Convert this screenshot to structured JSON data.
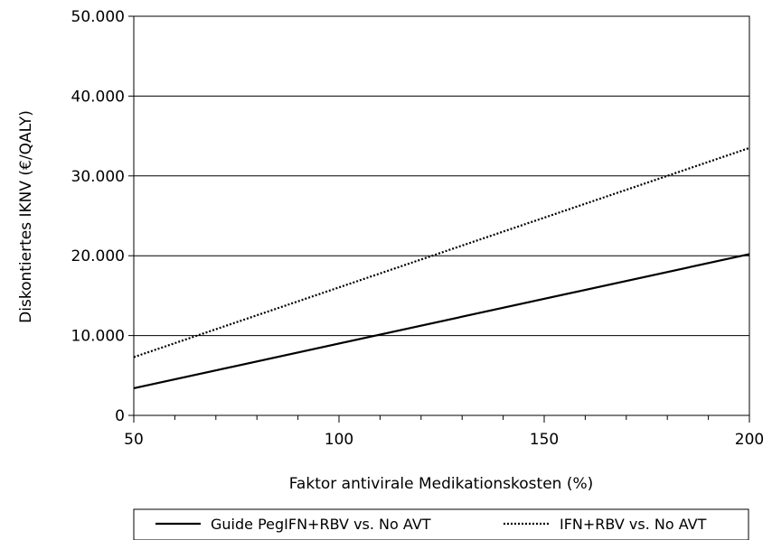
{
  "chart_data": {
    "type": "line",
    "xlabel": "Faktor antivirale Medikationskosten (%)",
    "ylabel": "Diskontiertes IKNV (€/QALY)",
    "xlim": [
      50,
      200
    ],
    "ylim": [
      0,
      50000
    ],
    "x_ticks": [
      50,
      100,
      150,
      200
    ],
    "x_tick_labels": [
      "50",
      "100",
      "150",
      "200"
    ],
    "y_ticks": [
      0,
      10000,
      20000,
      30000,
      40000,
      50000
    ],
    "y_tick_labels": [
      "0",
      "10.000",
      "20.000",
      "30.000",
      "40.000",
      "50.000"
    ],
    "grid": "horizontal",
    "legend_position": "bottom",
    "series": [
      {
        "name": "Guide PegIFN+RBV vs. No AVT",
        "style": "solid",
        "color": "#000000",
        "x": [
          50,
          200
        ],
        "y": [
          3400,
          20200
        ]
      },
      {
        "name": "IFN+RBV vs. No AVT",
        "style": "dotted",
        "color": "#000000",
        "x": [
          50,
          200
        ],
        "y": [
          7300,
          33500
        ]
      }
    ]
  }
}
